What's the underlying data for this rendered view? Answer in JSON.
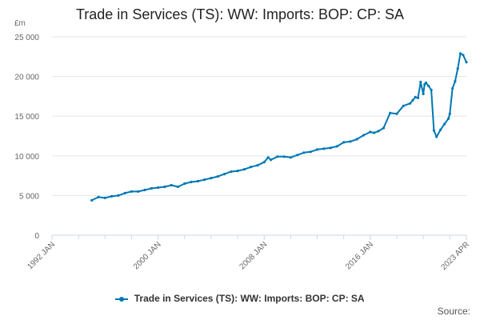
{
  "colors": {
    "series": "#0078B4",
    "grid": "#e6e6e6",
    "axis": "#ccd6eb",
    "text": "#666666"
  },
  "footer": {
    "source": "Source:"
  },
  "chart_data": {
    "type": "line",
    "title": "Trade in Services (TS): WW: Imports: BOP: CP: SA",
    "ylabel": "£m",
    "xlabel": "",
    "ylim": [
      0,
      25000
    ],
    "xlim": [
      1992.0,
      2023.25
    ],
    "yticks": [
      0,
      5000,
      10000,
      15000,
      20000,
      25000
    ],
    "ytick_labels": [
      "0",
      "5 000",
      "10 000",
      "15 000",
      "20 000",
      "25 000"
    ],
    "xticks": [
      1992,
      2000,
      2008,
      2016,
      2023.25
    ],
    "xtick_labels": [
      "1992 JAN",
      "2000 JAN",
      "2008 JAN",
      "2016 JAN",
      "2023 APR"
    ],
    "legend": "bottom-center",
    "grid": true,
    "series": [
      {
        "name": "Trade in Services (TS): WW: Imports: BOP: CP: SA",
        "x": [
          1995.0,
          1995.5,
          1996.0,
          1996.5,
          1997.0,
          1997.5,
          1998.0,
          1998.5,
          1999.0,
          1999.5,
          2000.0,
          2000.5,
          2001.0,
          2001.5,
          2002.0,
          2002.5,
          2003.0,
          2003.5,
          2004.0,
          2004.5,
          2005.0,
          2005.5,
          2006.0,
          2006.5,
          2007.0,
          2007.5,
          2008.0,
          2008.3,
          2008.5,
          2009.0,
          2009.5,
          2010.0,
          2010.5,
          2011.0,
          2011.5,
          2012.0,
          2012.5,
          2013.0,
          2013.5,
          2014.0,
          2014.5,
          2015.0,
          2015.5,
          2016.0,
          2016.3,
          2016.6,
          2017.0,
          2017.5,
          2018.0,
          2018.5,
          2019.0,
          2019.2,
          2019.4,
          2019.6,
          2019.8,
          2020.0,
          2020.1,
          2020.2,
          2020.4,
          2020.6,
          2020.8,
          2021.0,
          2021.3,
          2021.6,
          2021.9,
          2022.0,
          2022.2,
          2022.4,
          2022.6,
          2022.8,
          2023.0,
          2023.25
        ],
        "values": [
          4400,
          4800,
          4700,
          4900,
          5000,
          5300,
          5500,
          5500,
          5700,
          5900,
          6000,
          6100,
          6300,
          6100,
          6500,
          6700,
          6800,
          7000,
          7200,
          7400,
          7700,
          8000,
          8100,
          8300,
          8600,
          8800,
          9200,
          9800,
          9500,
          9900,
          9900,
          9800,
          10100,
          10400,
          10500,
          10800,
          10900,
          11000,
          11200,
          11700,
          11800,
          12100,
          12600,
          13000,
          12900,
          13100,
          13500,
          15400,
          15300,
          16300,
          16600,
          17000,
          17400,
          17300,
          19300,
          17800,
          19000,
          19200,
          18800,
          18300,
          13200,
          12400,
          13300,
          14000,
          14700,
          15300,
          18500,
          19400,
          21000,
          22900,
          22700,
          21800
        ]
      }
    ]
  }
}
